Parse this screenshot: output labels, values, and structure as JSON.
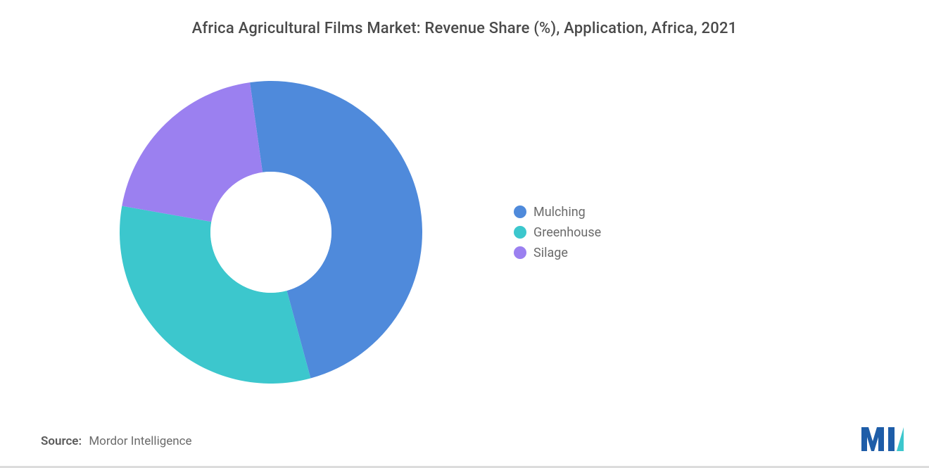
{
  "title": "Africa Agricultural Films Market: Revenue Share (%), Application, Africa, 2021",
  "chart": {
    "type": "donut",
    "background_color": "#ffffff",
    "inner_radius_ratio": 0.4,
    "slices": [
      {
        "label": "Mulching",
        "value": 48,
        "color": "#4f8adb"
      },
      {
        "label": "Greenhouse",
        "value": 32,
        "color": "#3cc7cd"
      },
      {
        "label": "Silage",
        "value": 20,
        "color": "#9b80f0"
      }
    ],
    "start_angle_deg": -98,
    "legend": {
      "position": "right",
      "fontsize": 18,
      "text_color": "#6b6b6b",
      "dot_size": 18
    },
    "title_fontsize": 22,
    "title_color": "#4a4a4a"
  },
  "source": {
    "label": "Source:",
    "value": "Mordor Intelligence"
  },
  "brand_colors": {
    "logo_primary": "#1e5da8",
    "logo_accent": "#3cc7cd"
  }
}
